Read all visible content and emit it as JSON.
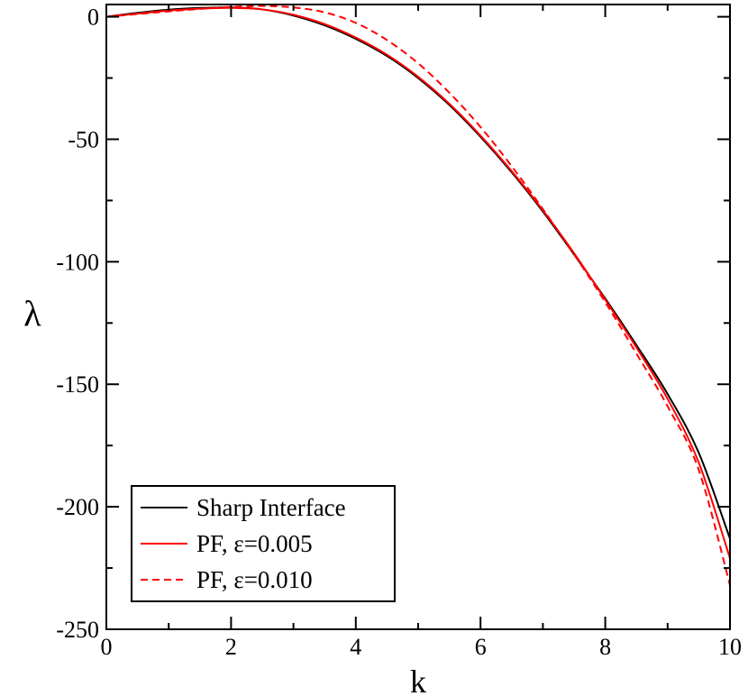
{
  "chart_data": {
    "type": "line",
    "title": "",
    "xlabel": "k",
    "ylabel": "λ",
    "xlim": [
      0,
      10
    ],
    "ylim": [
      -250,
      5
    ],
    "grid": false,
    "legend_position": "bottom-left",
    "x_major_ticks": [
      0,
      2,
      4,
      6,
      8,
      10
    ],
    "x_tick_labels": [
      "0",
      "2",
      "4",
      "6",
      "8",
      "10"
    ],
    "y_major_ticks": [
      0,
      -50,
      -100,
      -150,
      -200,
      -250
    ],
    "y_tick_labels": [
      "0",
      "-50",
      "-100",
      "-150",
      "-200",
      "-250"
    ],
    "x": [
      0,
      0.5,
      1,
      1.5,
      2,
      2.5,
      3,
      3.5,
      4,
      4.5,
      5,
      5.5,
      6,
      6.5,
      7,
      7.5,
      8,
      8.5,
      9,
      9.5,
      10
    ],
    "series": [
      {
        "name": "Sharp Interface",
        "color": "#000000",
        "dash": "solid",
        "values": [
          0,
          1.6,
          2.9,
          3.6,
          3.8,
          3.0,
          0.5,
          -3.5,
          -9.0,
          -16.0,
          -25.0,
          -36.0,
          -49.0,
          -63.5,
          -79.5,
          -97.0,
          -115.0,
          -134.0,
          -154.0,
          -178.0,
          -213.0
        ]
      },
      {
        "name": "PF, ε=0.005",
        "color": "#ff0000",
        "dash": "solid",
        "values": [
          0,
          1.3,
          2.5,
          3.3,
          3.6,
          3.0,
          0.8,
          -3.0,
          -8.5,
          -15.5,
          -24.5,
          -35.5,
          -48.5,
          -63.0,
          -79.0,
          -96.5,
          -115.5,
          -135.0,
          -156.0,
          -182.0,
          -221.0
        ]
      },
      {
        "name": "PF, ε=0.010",
        "color": "#ff0000",
        "dash": "dashed",
        "values": [
          0,
          1.1,
          2.2,
          3.2,
          4.0,
          4.4,
          3.8,
          1.8,
          -2.5,
          -9.5,
          -19.0,
          -31.0,
          -45.0,
          -61.0,
          -78.5,
          -97.0,
          -116.5,
          -137.5,
          -159.0,
          -185.0,
          -232.0
        ]
      }
    ]
  }
}
